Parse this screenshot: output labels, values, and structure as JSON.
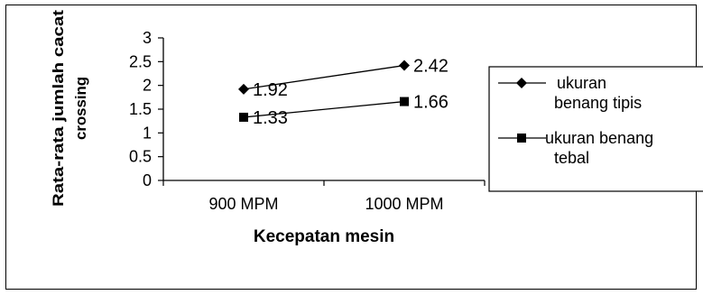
{
  "chart_data": {
    "type": "line",
    "categories": [
      "900 MPM",
      "1000 MPM"
    ],
    "series": [
      {
        "name": " ukuran benang tipis",
        "legend_lines": [
          " ukuran",
          "benang tipis"
        ],
        "values": [
          1.92,
          2.42
        ],
        "labels": [
          "1.92",
          "2.42"
        ],
        "marker": "diamond",
        "color": "#000000"
      },
      {
        "name": "ukuran benang tebal",
        "legend_lines": [
          "ukuran benang",
          "tebal"
        ],
        "values": [
          1.33,
          1.66
        ],
        "labels": [
          "1.33",
          "1.66"
        ],
        "marker": "square",
        "color": "#000000"
      }
    ],
    "xlabel": "Kecepatan mesin",
    "ylabel_lines": [
      "Rata-rata jumlah cacat",
      "crossing"
    ],
    "ylim": [
      0,
      3
    ],
    "yticks": [
      "0",
      "0.5",
      "1",
      "1.5",
      "2",
      "2.5",
      "3"
    ],
    "grid": false,
    "legend_position": "right"
  }
}
